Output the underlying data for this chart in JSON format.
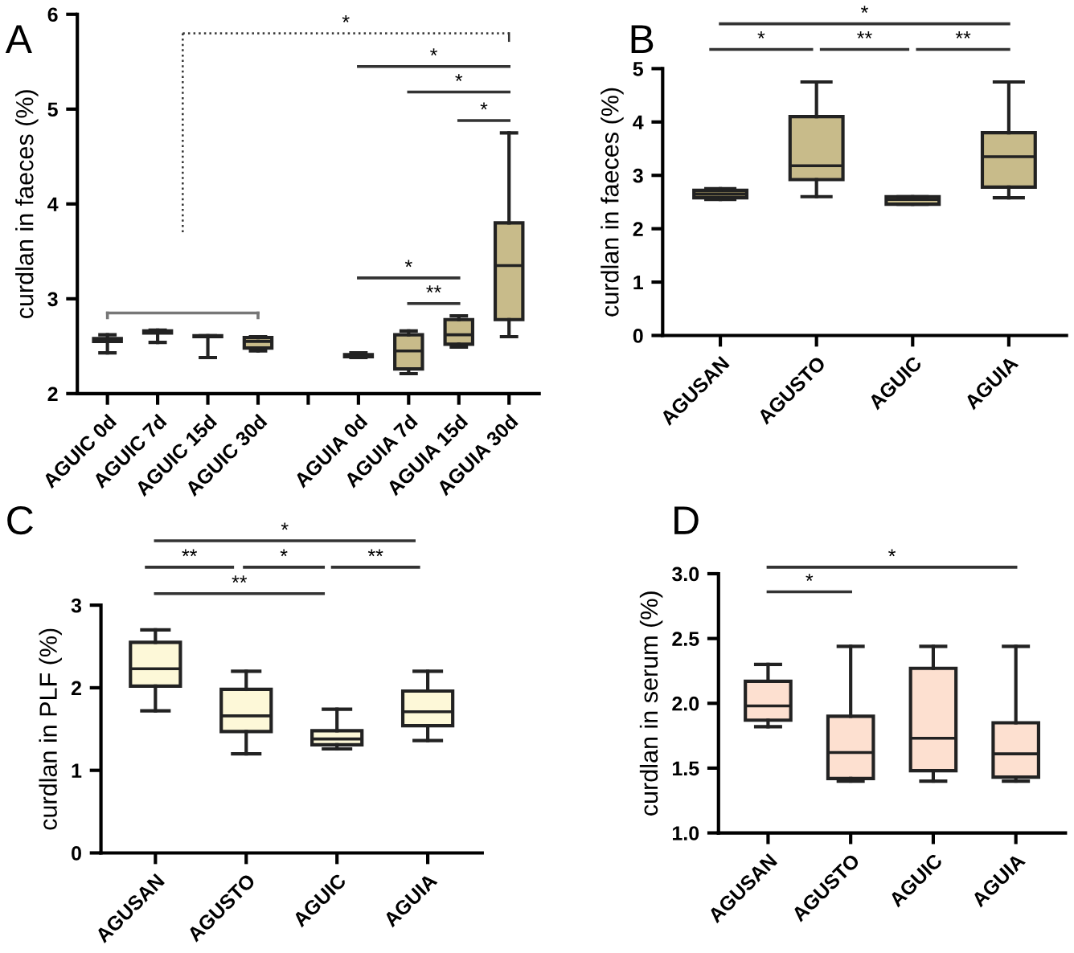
{
  "chart_data": [
    {
      "type": "box",
      "title": "A",
      "ylabel": "curdlan in faeces (%)",
      "categories": [
        "AGUIC 0d",
        "AGUIC 7d",
        "AGUIC 15d",
        "AGUIC 30d",
        null,
        "AGUIA 0d",
        "AGUIA 7d",
        "AGUIA 15d",
        "AGUIA 30d"
      ],
      "boxes": [
        {
          "low": 2.43,
          "q1": 2.55,
          "median": 2.57,
          "q3": 2.58,
          "high": 2.62
        },
        {
          "low": 2.54,
          "q1": 2.64,
          "median": 2.65,
          "q3": 2.66,
          "high": 2.67
        },
        {
          "low": 2.38,
          "q1": 2.6,
          "median": 2.6,
          "q3": 2.61,
          "high": 2.61
        },
        {
          "low": 2.45,
          "q1": 2.48,
          "median": 2.55,
          "q3": 2.59,
          "high": 2.6
        },
        null,
        {
          "low": 2.38,
          "q1": 2.39,
          "median": 2.39,
          "q3": 2.41,
          "high": 2.43
        },
        {
          "low": 2.21,
          "q1": 2.26,
          "median": 2.45,
          "q3": 2.62,
          "high": 2.66
        },
        {
          "low": 2.49,
          "q1": 2.52,
          "median": 2.62,
          "q3": 2.78,
          "high": 2.82
        },
        {
          "low": 2.6,
          "q1": 2.78,
          "median": 3.35,
          "q3": 3.8,
          "high": 4.75
        }
      ],
      "colors": [
        "#ffffff",
        "#ffffff",
        "#ffffff",
        "#c8bb8a",
        null,
        "#ffffff",
        "#c8bb8a",
        "#c8bb8a",
        "#c8bb8a"
      ],
      "ylim": [
        2,
        6
      ],
      "yticks": [
        2,
        3,
        4,
        5,
        6
      ],
      "annotations": [
        "*",
        "*",
        "*",
        "*",
        "*",
        "**"
      ]
    },
    {
      "type": "box",
      "title": "B",
      "ylabel": "curdlan in faeces (%)",
      "categories": [
        "AGUSAN",
        "AGUSTO",
        "AGUIC",
        "AGUIA"
      ],
      "boxes": [
        {
          "low": 2.55,
          "q1": 2.58,
          "median": 2.65,
          "q3": 2.72,
          "high": 2.75
        },
        {
          "low": 2.6,
          "q1": 2.92,
          "median": 3.18,
          "q3": 4.1,
          "high": 4.75
        },
        {
          "low": 2.46,
          "q1": 2.46,
          "median": 2.55,
          "q3": 2.6,
          "high": 2.6
        },
        {
          "low": 2.58,
          "q1": 2.78,
          "median": 3.35,
          "q3": 3.8,
          "high": 4.75
        }
      ],
      "colors": [
        "#8a7e55",
        "#c8bb8a",
        "#c8bb8a",
        "#c8bb8a"
      ],
      "ylim": [
        0,
        5
      ],
      "yticks": [
        0,
        1,
        2,
        3,
        4,
        5
      ],
      "annotations": [
        "*",
        "*",
        "**",
        "**"
      ]
    },
    {
      "type": "box",
      "title": "C",
      "ylabel": "curdlan in PLF (%)",
      "categories": [
        "AGUSAN",
        "AGUSTO",
        "AGUIC",
        "AGUIA"
      ],
      "boxes": [
        {
          "low": 1.72,
          "q1": 2.02,
          "median": 2.23,
          "q3": 2.55,
          "high": 2.7
        },
        {
          "low": 1.2,
          "q1": 1.47,
          "median": 1.66,
          "q3": 1.98,
          "high": 2.2
        },
        {
          "low": 1.26,
          "q1": 1.31,
          "median": 1.38,
          "q3": 1.48,
          "high": 1.74
        },
        {
          "low": 1.36,
          "q1": 1.54,
          "median": 1.71,
          "q3": 1.96,
          "high": 2.2
        }
      ],
      "colors": [
        "#fdf8d8",
        "#fdf8d8",
        "#fdf8d8",
        "#fdf8d8"
      ],
      "ylim": [
        0,
        3
      ],
      "yticks": [
        0,
        1,
        2,
        3
      ],
      "annotations": [
        "*",
        "**",
        "*",
        "**",
        "**"
      ]
    },
    {
      "type": "box",
      "title": "D",
      "ylabel": "curdlan in serum (%)",
      "categories": [
        "AGUSAN",
        "AGUSTO",
        "AGUIC",
        "AGUIA"
      ],
      "boxes": [
        {
          "low": 1.82,
          "q1": 1.87,
          "median": 1.98,
          "q3": 2.17,
          "high": 2.3
        },
        {
          "low": 1.4,
          "q1": 1.42,
          "median": 1.62,
          "q3": 1.9,
          "high": 2.44
        },
        {
          "low": 1.4,
          "q1": 1.48,
          "median": 1.73,
          "q3": 2.27,
          "high": 2.44
        },
        {
          "low": 1.4,
          "q1": 1.43,
          "median": 1.61,
          "q3": 1.85,
          "high": 2.44
        }
      ],
      "colors": [
        "#fde0d0",
        "#fde0d0",
        "#fde0d0",
        "#fde0d0"
      ],
      "ylim": [
        1,
        3
      ],
      "yticks": [
        {
          "value": 1,
          "label": "1.0"
        },
        {
          "value": 1.5,
          "label": "1.5"
        },
        {
          "value": 2,
          "label": "2.0"
        },
        {
          "value": 2.5,
          "label": "2.5"
        },
        {
          "value": 3,
          "label": "3.0"
        }
      ],
      "annotations": [
        "*",
        "*"
      ]
    }
  ]
}
